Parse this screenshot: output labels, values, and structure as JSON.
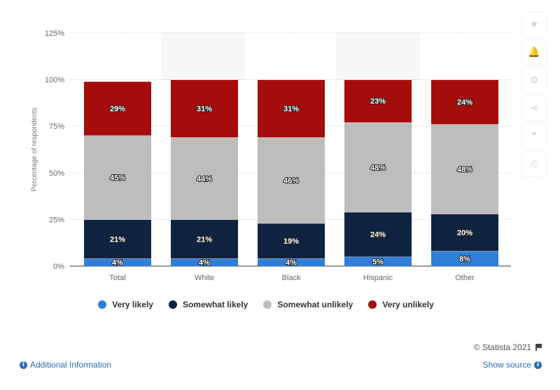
{
  "chart_data": {
    "type": "bar",
    "stacked": true,
    "categories": [
      "Total",
      "White",
      "Black",
      "Hispanic",
      "Other"
    ],
    "series": [
      {
        "name": "Very likely",
        "color": "#2f7ed8",
        "values": [
          4,
          4,
          4,
          5,
          8
        ]
      },
      {
        "name": "Somewhat likely",
        "color": "#0f2340",
        "values": [
          21,
          21,
          19,
          24,
          20
        ]
      },
      {
        "name": "Somewhat unlikely",
        "color": "#bdbdbd",
        "values": [
          45,
          44,
          46,
          48,
          48
        ]
      },
      {
        "name": "Very unlikely",
        "color": "#a50c0c",
        "values": [
          29,
          31,
          31,
          23,
          24
        ]
      }
    ],
    "ylabel": "Percentage of respondents",
    "ylim": [
      0,
      125
    ],
    "yticks": [
      "0%",
      "25%",
      "50%",
      "75%",
      "100%",
      "125%"
    ],
    "grid": true,
    "legend": "bottom"
  },
  "credit": "© Statista 2021",
  "footer": {
    "additional_info": "Additional Information",
    "show_source": "Show source"
  },
  "icons": {
    "sidebar": [
      "star-icon",
      "bell-icon",
      "gear-icon",
      "share-icon",
      "quote-icon",
      "print-icon"
    ]
  }
}
